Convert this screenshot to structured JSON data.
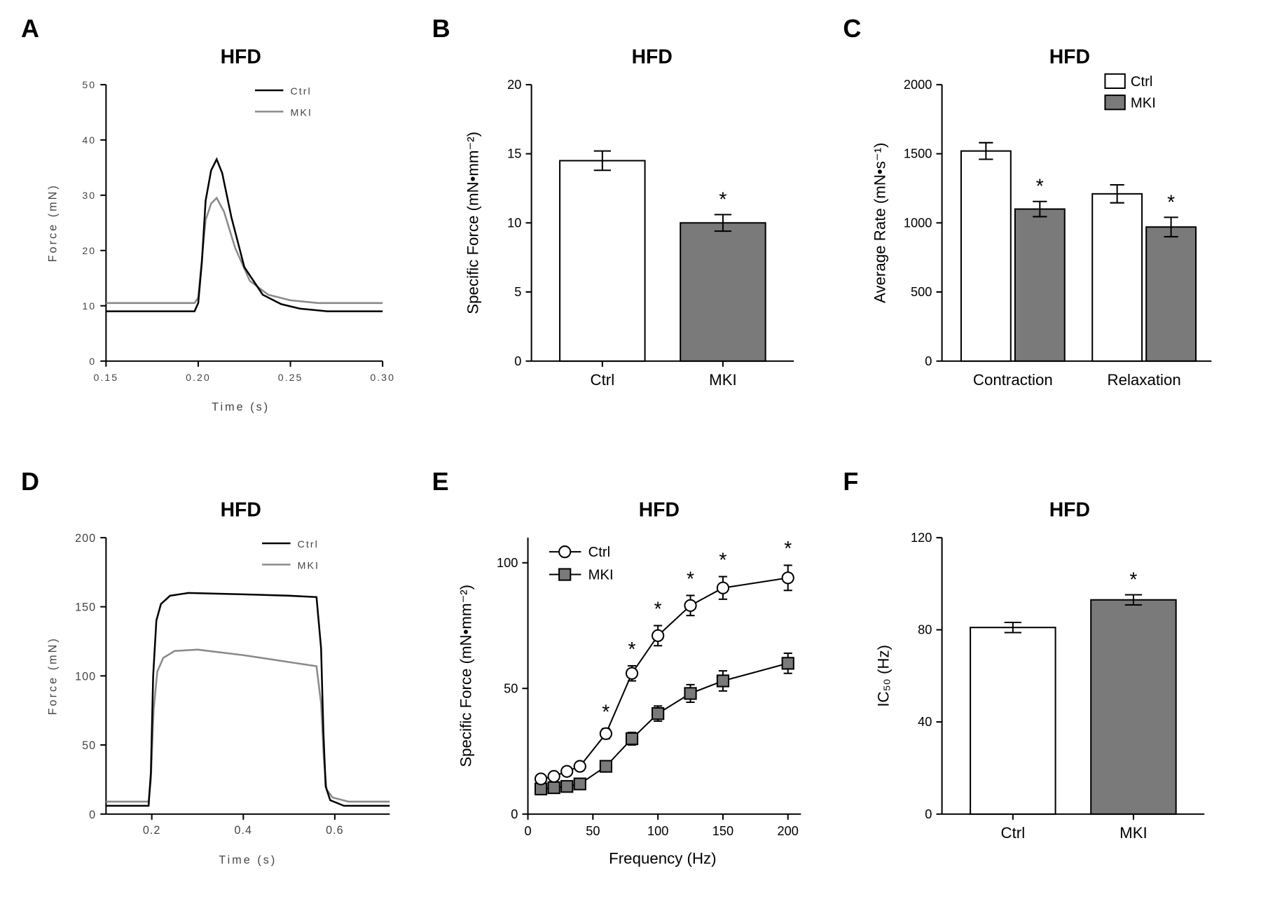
{
  "figure": {
    "panel_labels": [
      "A",
      "B",
      "C",
      "D",
      "E",
      "F"
    ],
    "colors": {
      "ctrl_fill": "#ffffff",
      "mki_fill": "#7a7a7a",
      "line_black": "#000000",
      "line_gray": "#8a8a8a",
      "bg": "#ffffff"
    },
    "font": {
      "title_size_pt": 22,
      "label_size_pt": 18,
      "tick_size_pt": 14
    }
  },
  "panelA": {
    "type": "line",
    "title": "HFD",
    "xlabel": "Time (s)",
    "ylabel": "Force (mN)",
    "xlim": [
      0.15,
      0.3
    ],
    "ylim": [
      0,
      50
    ],
    "xticks": [
      0.15,
      0.2,
      0.25,
      0.3
    ],
    "yticks": [
      0,
      10,
      20,
      30,
      40,
      50
    ],
    "legend": [
      "Ctrl",
      "MKI"
    ],
    "ctrl_trace": {
      "x": [
        0.15,
        0.198,
        0.2,
        0.202,
        0.204,
        0.207,
        0.21,
        0.213,
        0.218,
        0.225,
        0.235,
        0.245,
        0.255,
        0.27,
        0.3
      ],
      "y": [
        9.0,
        9.0,
        10.5,
        18.0,
        29.0,
        34.5,
        36.5,
        34.0,
        26.0,
        17.0,
        12.0,
        10.3,
        9.5,
        9.0,
        9.0
      ],
      "color": "#000000",
      "width": 2.5
    },
    "mki_trace": {
      "x": [
        0.15,
        0.198,
        0.2,
        0.202,
        0.204,
        0.207,
        0.21,
        0.214,
        0.22,
        0.228,
        0.238,
        0.25,
        0.265,
        0.3
      ],
      "y": [
        10.5,
        10.5,
        11.5,
        18.5,
        25.5,
        28.5,
        29.5,
        27.0,
        20.5,
        14.5,
        12.0,
        11.0,
        10.5,
        10.5
      ],
      "color": "#8a8a8a",
      "width": 2.5
    }
  },
  "panelB": {
    "type": "bar",
    "title": "HFD",
    "ylabel": "Specific Force (mN•mm⁻²)",
    "categories": [
      "Ctrl",
      "MKI"
    ],
    "values": [
      14.5,
      10.0
    ],
    "errors": [
      0.7,
      0.6
    ],
    "colors": [
      "#ffffff",
      "#7a7a7a"
    ],
    "ylim": [
      0,
      20
    ],
    "yticks": [
      0,
      5,
      10,
      15,
      20
    ],
    "significance": {
      "index": 1,
      "label": "*"
    }
  },
  "panelC": {
    "type": "grouped_bar",
    "title": "HFD",
    "ylabel": "Average Rate (mN•s⁻¹)",
    "groups": [
      "Contraction",
      "Relaxation"
    ],
    "series": [
      {
        "name": "Ctrl",
        "values": [
          1520,
          1210
        ],
        "errors": [
          60,
          65
        ],
        "color": "#ffffff"
      },
      {
        "name": "MKI",
        "values": [
          1100,
          970
        ],
        "errors": [
          55,
          70
        ],
        "color": "#7a7a7a"
      }
    ],
    "ylim": [
      0,
      2000
    ],
    "yticks": [
      0,
      500,
      1000,
      1500,
      2000
    ],
    "significance": [
      {
        "group": 0,
        "series": 1,
        "label": "*"
      },
      {
        "group": 1,
        "series": 1,
        "label": "*"
      }
    ]
  },
  "panelD": {
    "type": "line",
    "title": "HFD",
    "xlabel": "Time (s)",
    "ylabel": "Force (mN)",
    "xlim": [
      0.1,
      0.72
    ],
    "ylim": [
      0,
      200
    ],
    "xticks": [
      0.2,
      0.4,
      0.6
    ],
    "yticks": [
      0,
      50,
      100,
      150,
      200
    ],
    "legend": [
      "Ctrl",
      "MKI"
    ],
    "ctrl_trace": {
      "x": [
        0.1,
        0.193,
        0.198,
        0.203,
        0.21,
        0.22,
        0.24,
        0.28,
        0.4,
        0.5,
        0.56,
        0.57,
        0.575,
        0.58,
        0.59,
        0.62,
        0.72
      ],
      "y": [
        6,
        6,
        30,
        100,
        140,
        152,
        158,
        160,
        159,
        158,
        157,
        120,
        60,
        20,
        10,
        6,
        6
      ],
      "color": "#000000",
      "width": 2.5
    },
    "mki_trace": {
      "x": [
        0.1,
        0.193,
        0.198,
        0.204,
        0.212,
        0.225,
        0.25,
        0.3,
        0.4,
        0.5,
        0.56,
        0.57,
        0.576,
        0.582,
        0.595,
        0.63,
        0.72
      ],
      "y": [
        9,
        9,
        25,
        75,
        103,
        113,
        118,
        119,
        115,
        110,
        107,
        80,
        40,
        18,
        12,
        9,
        9
      ],
      "color": "#8a8a8a",
      "width": 2.5
    }
  },
  "panelE": {
    "type": "line_markers",
    "title": "HFD",
    "xlabel": "Frequency (Hz)",
    "ylabel": "Specific Force (mN•mm⁻²)",
    "xlim": [
      0,
      210
    ],
    "ylim": [
      0,
      110
    ],
    "xticks": [
      0,
      50,
      100,
      150,
      200
    ],
    "yticks": [
      0,
      50,
      100
    ],
    "legend": [
      "Ctrl",
      "MKI"
    ],
    "ctrl": {
      "marker": "circle",
      "color": "#ffffff",
      "line_color": "#000000",
      "x": [
        10,
        20,
        30,
        40,
        60,
        80,
        100,
        125,
        150,
        200
      ],
      "y": [
        14,
        15,
        17,
        19,
        32,
        56,
        71,
        83,
        90,
        94
      ],
      "err": [
        1,
        1,
        1.5,
        1.5,
        2,
        3,
        4,
        4,
        4.5,
        5
      ]
    },
    "mki": {
      "marker": "square",
      "color": "#7a7a7a",
      "line_color": "#000000",
      "x": [
        10,
        20,
        30,
        40,
        60,
        80,
        100,
        125,
        150,
        200
      ],
      "y": [
        10,
        10.5,
        11,
        12,
        19,
        30,
        40,
        48,
        53,
        60
      ],
      "err": [
        1,
        1,
        1.2,
        1.2,
        2,
        2.5,
        3,
        3.5,
        4,
        4
      ]
    },
    "significance_x": [
      60,
      80,
      100,
      125,
      150,
      200
    ]
  },
  "panelF": {
    "type": "bar",
    "title": "HFD",
    "ylabel": "IC₅₀ (Hz)",
    "categories": [
      "Ctrl",
      "MKI"
    ],
    "values": [
      81,
      93
    ],
    "errors": [
      2.2,
      2.2
    ],
    "colors": [
      "#ffffff",
      "#7a7a7a"
    ],
    "ylim": [
      0,
      120
    ],
    "yticks": [
      0,
      40,
      80,
      120
    ],
    "significance": {
      "index": 1,
      "label": "*"
    }
  }
}
